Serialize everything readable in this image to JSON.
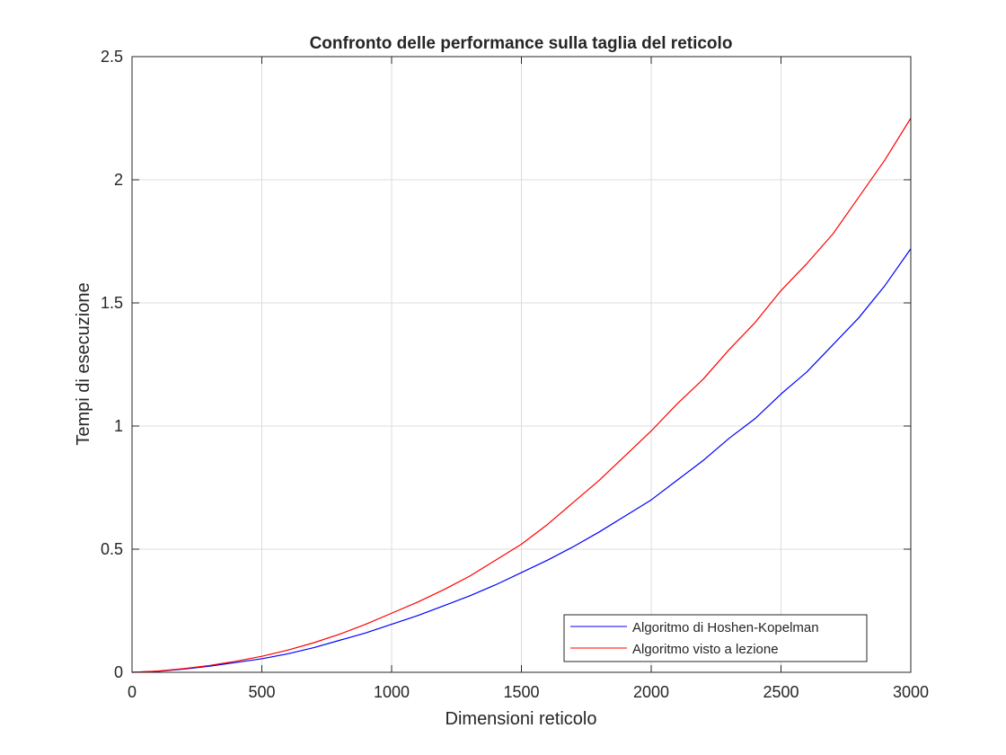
{
  "chart_data": {
    "type": "line",
    "title": "Confronto delle performance sulla taglia del reticolo",
    "xlabel": "Dimensioni reticolo",
    "ylabel": "Tempi di esecuzione",
    "xlim": [
      0,
      3000
    ],
    "ylim": [
      0,
      2.5
    ],
    "xticks": [
      "0",
      "500",
      "1000",
      "1500",
      "2000",
      "2500",
      "3000"
    ],
    "yticks": [
      "0",
      "0.5",
      "1",
      "1.5",
      "2",
      "2.5"
    ],
    "grid": true,
    "legend_position": "bottom-right",
    "x": [
      0,
      100,
      200,
      300,
      400,
      500,
      600,
      700,
      800,
      900,
      1000,
      1100,
      1200,
      1300,
      1400,
      1500,
      1600,
      1700,
      1800,
      1900,
      2000,
      2100,
      2200,
      2300,
      2400,
      2500,
      2600,
      2700,
      2800,
      2900,
      3000
    ],
    "series": [
      {
        "name": "Algoritmo di Hoshen-Kopelman",
        "color": "#0000ff",
        "values": [
          0,
          0.004,
          0.013,
          0.025,
          0.04,
          0.055,
          0.075,
          0.1,
          0.13,
          0.16,
          0.195,
          0.23,
          0.27,
          0.31,
          0.355,
          0.405,
          0.455,
          0.51,
          0.57,
          0.635,
          0.7,
          0.78,
          0.86,
          0.95,
          1.03,
          1.13,
          1.22,
          1.33,
          1.44,
          1.57,
          1.72
        ]
      },
      {
        "name": "Algoritmo visto a lezione",
        "color": "#ff0000",
        "values": [
          0,
          0.005,
          0.015,
          0.028,
          0.045,
          0.065,
          0.09,
          0.12,
          0.155,
          0.195,
          0.24,
          0.285,
          0.335,
          0.39,
          0.455,
          0.52,
          0.6,
          0.69,
          0.78,
          0.88,
          0.98,
          1.09,
          1.19,
          1.31,
          1.42,
          1.55,
          1.66,
          1.78,
          1.93,
          2.08,
          2.25
        ]
      }
    ]
  }
}
